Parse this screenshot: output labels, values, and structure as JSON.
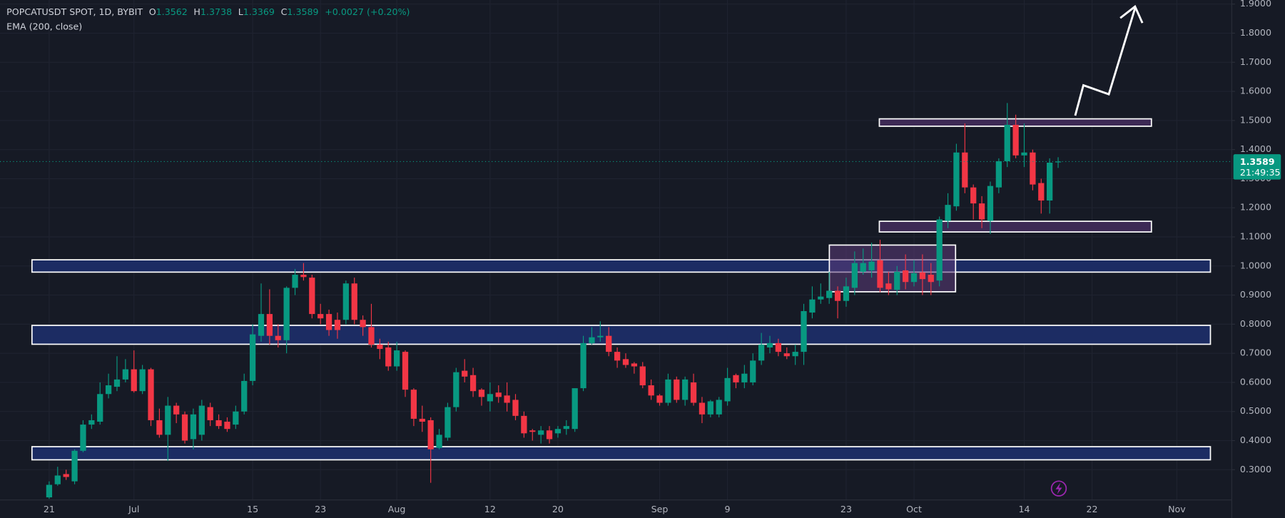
{
  "chart_data": {
    "type": "candlestick",
    "symbol": "POPCATUSDT SPOT, 1D, BYBIT",
    "indicator": "EMA (200, close)",
    "legend": {
      "open_label": "O",
      "open": 1.3562,
      "high_label": "H",
      "high": 1.3738,
      "low_label": "L",
      "low": 1.3369,
      "close_label": "C",
      "close": 1.3589,
      "change": {
        "value": 0.0027,
        "label": "+0.0027 (+0.20%)"
      }
    },
    "last_price": 1.3589,
    "countdown": "21:49:35",
    "up_color": "#089981",
    "down_color": "#f23645",
    "grid": true,
    "ylim": [
      0.196,
      1.914
    ],
    "yticks": [
      {
        "value": 0.3,
        "label": "0.3000"
      },
      {
        "value": 0.4,
        "label": "0.4000"
      },
      {
        "value": 0.5,
        "label": "0.5000"
      },
      {
        "value": 0.6,
        "label": "0.6000"
      },
      {
        "value": 0.7,
        "label": "0.7000"
      },
      {
        "value": 0.8,
        "label": "0.8000"
      },
      {
        "value": 0.9,
        "label": "0.9000"
      },
      {
        "value": 1.0,
        "label": "1.0000"
      },
      {
        "value": 1.1,
        "label": "1.1000"
      },
      {
        "value": 1.2,
        "label": "1.2000"
      },
      {
        "value": 1.3,
        "label": "1.3000"
      },
      {
        "value": 1.4,
        "label": "1.4000"
      },
      {
        "value": 1.5,
        "label": "1.5000"
      },
      {
        "value": 1.6,
        "label": "1.6000"
      },
      {
        "value": 1.7,
        "label": "1.7000"
      },
      {
        "value": 1.8,
        "label": "1.8000"
      },
      {
        "value": 1.9,
        "label": "1.9000"
      }
    ],
    "categories": [
      "21",
      null,
      null,
      null,
      null,
      null,
      null,
      null,
      null,
      null,
      "Jul",
      null,
      null,
      null,
      null,
      null,
      null,
      null,
      null,
      null,
      null,
      null,
      null,
      null,
      "15",
      null,
      null,
      null,
      null,
      null,
      null,
      null,
      "23",
      null,
      null,
      null,
      null,
      null,
      null,
      null,
      null,
      "Aug",
      null,
      null,
      null,
      null,
      null,
      null,
      null,
      null,
      null,
      null,
      "12",
      null,
      null,
      null,
      null,
      null,
      null,
      null,
      "20",
      null,
      null,
      null,
      null,
      null,
      null,
      null,
      null,
      null,
      null,
      null,
      "Sep",
      null,
      null,
      null,
      null,
      null,
      null,
      null,
      "9",
      null,
      null,
      null,
      null,
      null,
      null,
      null,
      null,
      null,
      null,
      null,
      null,
      null,
      "23",
      null,
      null,
      null,
      null,
      null,
      null,
      null,
      "Oct",
      null,
      null,
      null,
      null,
      null,
      null,
      null,
      null,
      null,
      null,
      null,
      null,
      "14",
      null,
      null,
      null,
      null,
      null,
      null,
      null,
      "22",
      null,
      null,
      null,
      null,
      null,
      null,
      null,
      null,
      null,
      "Nov",
      null,
      null,
      null,
      null,
      null,
      null
    ],
    "open": [
      0.205,
      0.25,
      0.285,
      0.26,
      0.365,
      0.455,
      0.465,
      0.56,
      0.585,
      0.61,
      0.645,
      0.57,
      0.645,
      0.47,
      0.42,
      0.52,
      0.49,
      0.405,
      0.42,
      0.515,
      0.47,
      0.465,
      0.455,
      0.5,
      0.605,
      0.76,
      0.835,
      0.76,
      0.745,
      0.925,
      0.97,
      0.96,
      0.835,
      0.835,
      0.815,
      0.815,
      0.94,
      0.815,
      0.79,
      0.73,
      0.72,
      0.655,
      0.705,
      0.575,
      0.475,
      0.47,
      0.375,
      0.41,
      0.515,
      0.64,
      0.625,
      0.575,
      0.535,
      0.565,
      0.555,
      0.54,
      0.485,
      0.435,
      0.42,
      0.435,
      0.425,
      0.44,
      0.44,
      0.58,
      0.735,
      0.755,
      0.76,
      0.705,
      0.68,
      0.665,
      0.655,
      0.59,
      0.555,
      0.53,
      0.61,
      0.54,
      0.6,
      0.53,
      0.49,
      0.49,
      0.535,
      0.625,
      0.6,
      0.6,
      0.675,
      0.72,
      0.735,
      0.7,
      0.69,
      0.705,
      0.84,
      0.885,
      0.89,
      0.915,
      0.88,
      0.925,
      0.98,
      0.985,
      1.02,
      0.94,
      0.918,
      0.985,
      0.945,
      0.978,
      0.97,
      0.95,
      1.155,
      1.205,
      1.39,
      1.27,
      1.215,
      1.155,
      1.27,
      1.36,
      1.485,
      1.38,
      1.39,
      1.285,
      1.225,
      1.3562,
      null,
      null,
      null,
      null,
      null,
      null,
      null,
      null,
      null,
      null,
      null,
      null,
      null,
      null,
      null,
      null,
      null,
      null,
      null,
      null
    ],
    "high": [
      0.26,
      0.31,
      0.3,
      0.37,
      0.47,
      0.49,
      0.6,
      0.63,
      0.69,
      0.68,
      0.71,
      0.66,
      0.65,
      0.51,
      0.55,
      0.53,
      0.5,
      0.51,
      0.54,
      0.53,
      0.49,
      0.48,
      0.52,
      0.63,
      0.8,
      0.94,
      0.92,
      0.8,
      0.93,
      0.99,
      1.01,
      0.97,
      0.87,
      0.85,
      0.84,
      0.95,
      0.96,
      0.83,
      0.87,
      0.75,
      0.74,
      0.74,
      0.71,
      0.58,
      0.52,
      0.48,
      0.44,
      0.53,
      0.65,
      0.68,
      0.65,
      0.58,
      0.6,
      0.59,
      0.6,
      0.56,
      0.5,
      0.44,
      0.45,
      0.45,
      0.45,
      0.47,
      0.58,
      0.76,
      0.79,
      0.81,
      0.79,
      0.72,
      0.7,
      0.67,
      0.67,
      0.61,
      0.56,
      0.63,
      0.62,
      0.62,
      0.63,
      0.55,
      0.54,
      0.55,
      0.65,
      0.63,
      0.66,
      0.7,
      0.77,
      0.76,
      0.75,
      0.72,
      0.73,
      0.87,
      0.93,
      0.94,
      0.98,
      0.93,
      0.96,
      1.05,
      1.06,
      1.08,
      1.09,
      0.98,
      1.0,
      1.04,
      1.02,
      1.04,
      1.01,
      1.17,
      1.25,
      1.42,
      1.49,
      1.28,
      1.24,
      1.29,
      1.37,
      1.56,
      1.52,
      1.49,
      1.4,
      1.3,
      1.37,
      1.3738,
      null,
      null,
      null,
      null,
      null,
      null,
      null,
      null,
      null,
      null,
      null,
      null,
      null,
      null,
      null,
      null,
      null,
      null,
      null,
      null
    ],
    "low": [
      0.2,
      0.245,
      0.265,
      0.25,
      0.36,
      0.44,
      0.455,
      0.545,
      0.57,
      0.6,
      0.565,
      0.56,
      0.45,
      0.41,
      0.33,
      0.46,
      0.39,
      0.37,
      0.4,
      0.45,
      0.44,
      0.43,
      0.44,
      0.49,
      0.59,
      0.74,
      0.73,
      0.72,
      0.7,
      0.9,
      0.95,
      0.82,
      0.8,
      0.76,
      0.75,
      0.8,
      0.8,
      0.76,
      0.72,
      0.68,
      0.64,
      0.64,
      0.55,
      0.45,
      0.43,
      0.255,
      0.37,
      0.4,
      0.5,
      0.6,
      0.55,
      0.52,
      0.5,
      0.53,
      0.5,
      0.47,
      0.41,
      0.4,
      0.39,
      0.39,
      0.41,
      0.42,
      0.43,
      0.57,
      0.73,
      0.74,
      0.69,
      0.65,
      0.65,
      0.63,
      0.58,
      0.54,
      0.52,
      0.52,
      0.53,
      0.52,
      0.52,
      0.46,
      0.48,
      0.48,
      0.52,
      0.58,
      0.58,
      0.59,
      0.66,
      0.7,
      0.69,
      0.68,
      0.66,
      0.66,
      0.82,
      0.87,
      0.87,
      0.82,
      0.86,
      0.9,
      0.97,
      0.96,
      0.91,
      0.9,
      0.9,
      0.92,
      0.93,
      0.9,
      0.9,
      0.93,
      1.13,
      1.19,
      1.25,
      1.16,
      1.13,
      1.11,
      1.25,
      1.34,
      1.37,
      1.34,
      1.26,
      1.18,
      1.18,
      1.3369,
      null,
      null,
      null,
      null,
      null,
      null,
      null,
      null,
      null,
      null,
      null,
      null,
      null,
      null,
      null,
      null,
      null,
      null,
      null,
      null
    ],
    "close": [
      0.248,
      0.28,
      0.275,
      0.365,
      0.455,
      0.47,
      0.56,
      0.59,
      0.61,
      0.645,
      0.57,
      0.645,
      0.47,
      0.42,
      0.52,
      0.49,
      0.4,
      0.49,
      0.52,
      0.47,
      0.45,
      0.44,
      0.5,
      0.605,
      0.765,
      0.835,
      0.76,
      0.745,
      0.925,
      0.97,
      0.962,
      0.835,
      0.82,
      0.78,
      0.78,
      0.94,
      0.815,
      0.79,
      0.73,
      0.715,
      0.655,
      0.71,
      0.575,
      0.475,
      0.465,
      0.37,
      0.42,
      0.515,
      0.635,
      0.62,
      0.57,
      0.55,
      0.56,
      0.55,
      0.53,
      0.485,
      0.425,
      0.43,
      0.435,
      0.405,
      0.44,
      0.45,
      0.58,
      0.735,
      0.755,
      0.76,
      0.705,
      0.675,
      0.66,
      0.655,
      0.59,
      0.555,
      0.53,
      0.61,
      0.54,
      0.61,
      0.53,
      0.49,
      0.535,
      0.54,
      0.615,
      0.6,
      0.63,
      0.675,
      0.73,
      0.735,
      0.705,
      0.69,
      0.705,
      0.845,
      0.885,
      0.895,
      0.915,
      0.88,
      0.93,
      1.01,
      1.01,
      1.015,
      0.925,
      0.92,
      0.98,
      0.945,
      0.975,
      0.955,
      0.945,
      1.16,
      1.21,
      1.39,
      1.27,
      1.215,
      1.16,
      1.275,
      1.36,
      1.485,
      1.38,
      1.39,
      1.28,
      1.225,
      1.355,
      1.3589,
      null,
      null,
      null,
      null,
      null,
      null,
      null,
      null,
      null,
      null,
      null,
      null,
      null,
      null,
      null,
      null,
      null,
      null,
      null,
      null
    ]
  }
}
